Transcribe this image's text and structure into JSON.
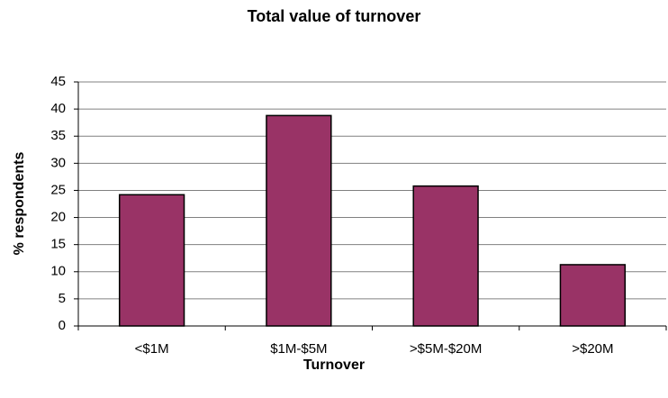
{
  "chart_data": {
    "type": "bar",
    "title": "Total value of turnover",
    "x_label": "Turnover",
    "y_label": "% respondents",
    "categories": [
      "<$1M",
      "$1M-$5M",
      ">$5M-$20M",
      ">$20M"
    ],
    "values": [
      24.2,
      38.8,
      25.8,
      11.3
    ],
    "color": "#993366",
    "ylim": [
      0,
      45
    ],
    "yticks": [
      0,
      5,
      10,
      15,
      20,
      25,
      30,
      35,
      40,
      45
    ],
    "grid": true
  }
}
